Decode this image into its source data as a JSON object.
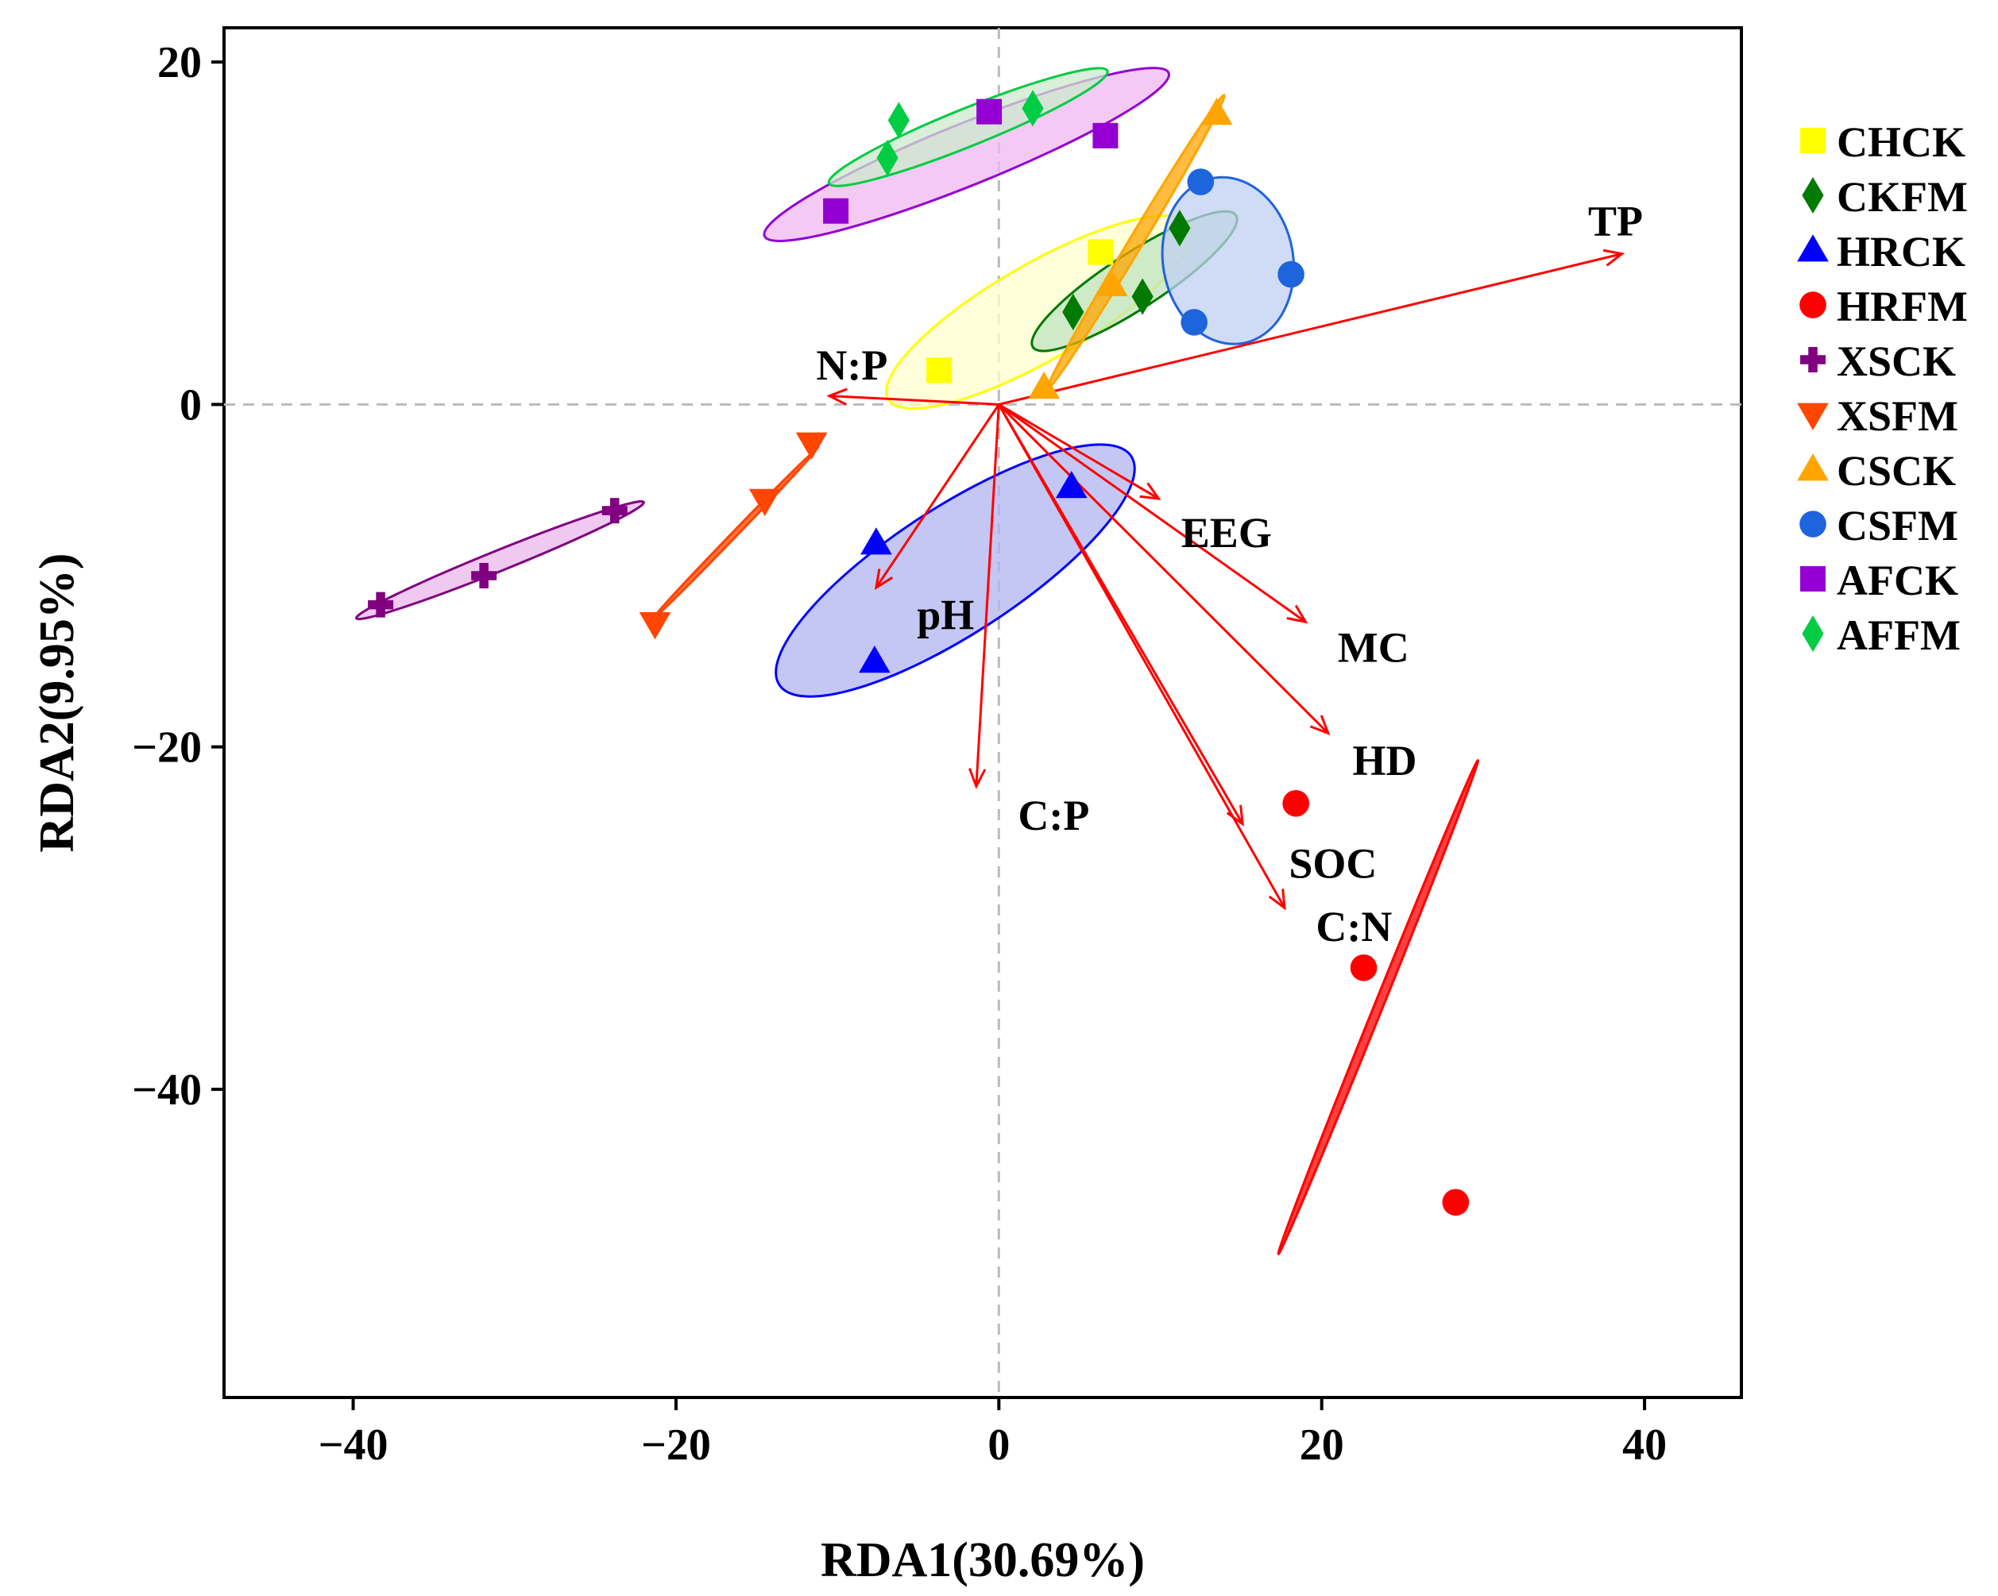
{
  "chart_data": {
    "type": "scatter",
    "subtype": "RDA biplot",
    "xlabel": "RDA1(30.69%)",
    "ylabel": "RDA2(9.95%)",
    "xlim": [
      -48,
      46
    ],
    "ylim": [
      -58,
      22
    ],
    "xticks": [
      -40,
      -20,
      0,
      20,
      40
    ],
    "yticks": [
      20,
      0,
      -20,
      -40
    ],
    "xtick_labels": [
      "−40",
      "−20",
      "0",
      "20",
      "40"
    ],
    "ytick_labels": [
      "20",
      "0",
      "−20",
      "−40"
    ],
    "reference_lines": {
      "x": 0,
      "y": 0,
      "style": "dashed"
    },
    "legend_position": "right",
    "series": [
      {
        "name": "CHCK",
        "marker": "square",
        "color": "#ffff00",
        "points": [
          [
            -3.7,
            2.0
          ],
          [
            6.3,
            8.9
          ]
        ],
        "ellipse": {
          "cx": 2.5,
          "cy": 5.4,
          "rx": 10.8,
          "ry": 2.8,
          "angle": 30
        },
        "ellipse_fill": "#ffffcc",
        "ellipse_stroke": "#ffff00"
      },
      {
        "name": "CKFM",
        "marker": "diamond",
        "color": "#007a00",
        "points": [
          [
            4.6,
            5.4
          ],
          [
            8.9,
            6.3
          ],
          [
            11.2,
            10.3
          ]
        ],
        "ellipse": {
          "cx": 8.4,
          "cy": 7.2,
          "rx": 7.5,
          "ry": 1.6,
          "angle": 33
        },
        "ellipse_fill": "#bfe3bf",
        "ellipse_stroke": "#007a00"
      },
      {
        "name": "HRCK",
        "marker": "triangle-up",
        "color": "#0000ff",
        "points": [
          [
            -7.6,
            -8.1
          ],
          [
            -7.7,
            -15.0
          ],
          [
            4.5,
            -4.8
          ]
        ],
        "ellipse": {
          "cx": -2.7,
          "cy": -9.7,
          "rx": 13.0,
          "ry": 3.7,
          "angle": 33
        },
        "ellipse_fill": "#b0b4f0",
        "ellipse_stroke": "#0000ff"
      },
      {
        "name": "HRFM",
        "marker": "circle",
        "color": "#ff0000",
        "points": [
          [
            18.4,
            -23.3
          ],
          [
            22.6,
            -32.9
          ],
          [
            28.3,
            -46.6
          ]
        ],
        "ellipse": {
          "cx": 23.5,
          "cy": -35.2,
          "rx": 16.5,
          "ry": 0.25,
          "angle": 68
        },
        "ellipse_fill": "#ff0000",
        "ellipse_stroke": "#ff0000"
      },
      {
        "name": "XSCK",
        "marker": "plus",
        "color": "#800080",
        "points": [
          [
            -38.3,
            -11.7
          ],
          [
            -31.9,
            -10.0
          ],
          [
            -23.8,
            -6.2
          ]
        ],
        "ellipse": {
          "cx": -30.9,
          "cy": -9.1,
          "rx": 9.6,
          "ry": 0.6,
          "angle": 22
        },
        "ellipse_fill": "#e9b7e9",
        "ellipse_stroke": "#800080"
      },
      {
        "name": "XSFM",
        "marker": "triangle-down",
        "color": "#ff4500",
        "points": [
          [
            -21.3,
            -12.8
          ],
          [
            -14.5,
            -5.6
          ],
          [
            -11.6,
            -2.3
          ]
        ],
        "ellipse": {
          "cx": -16.4,
          "cy": -7.6,
          "rx": 7.5,
          "ry": 0.15,
          "angle": 46
        },
        "ellipse_fill": "#ff4500",
        "ellipse_stroke": "#ff4500"
      },
      {
        "name": "CSCK",
        "marker": "triangle-up",
        "color": "#ffa500",
        "points": [
          [
            13.5,
            17.0
          ],
          [
            2.8,
            1.0
          ],
          [
            7.0,
            7.0
          ]
        ],
        "ellipse": {
          "cx": 8.5,
          "cy": 9.5,
          "rx": 10.6,
          "ry": 0.4,
          "angle": 59
        },
        "ellipse_fill": "#ffa500",
        "ellipse_stroke": "#ffa500"
      },
      {
        "name": "CSFM",
        "marker": "circle",
        "color": "#1e64dc",
        "points": [
          [
            12.5,
            13.0
          ],
          [
            18.1,
            7.6
          ],
          [
            12.1,
            4.8
          ]
        ],
        "ellipse": {
          "cx": 14.2,
          "cy": 8.4,
          "rx": 5.2,
          "ry": 3.8,
          "angle": 100
        },
        "ellipse_fill": "#c0cff2",
        "ellipse_stroke": "#1e64dc"
      },
      {
        "name": "AFCK",
        "marker": "square",
        "color": "#9400d3",
        "points": [
          [
            -10.1,
            11.3
          ],
          [
            -0.6,
            17.1
          ],
          [
            6.6,
            15.7
          ]
        ],
        "ellipse": {
          "cx": -2.0,
          "cy": 14.6,
          "rx": 13.5,
          "ry": 1.8,
          "angle": 22
        },
        "ellipse_fill": "#f0b8f0",
        "ellipse_stroke": "#9400d3"
      },
      {
        "name": "AFFM",
        "marker": "diamond",
        "color": "#00cc44",
        "points": [
          [
            -6.2,
            16.6
          ],
          [
            -6.9,
            14.4
          ],
          [
            2.1,
            17.3
          ]
        ],
        "ellipse": {
          "cx": -1.9,
          "cy": 16.2,
          "rx": 9.3,
          "ry": 1.1,
          "angle": 22
        },
        "ellipse_fill": "#cdeacd",
        "ellipse_stroke": "#00cc44"
      }
    ],
    "vectors": [
      {
        "name": "TP",
        "x": 38.6,
        "y": 8.8,
        "label_at": [
          38.2,
          10.7
        ]
      },
      {
        "name": "N:P",
        "x": -10.5,
        "y": 0.5,
        "label_at": [
          -9.1,
          2.3
        ]
      },
      {
        "name": "EEG",
        "x": 9.9,
        "y": -5.5,
        "label_at": [
          14.1,
          -7.5
        ]
      },
      {
        "name": "pH",
        "x": -7.6,
        "y": -10.7,
        "label_at": [
          -3.3,
          -12.3
        ]
      },
      {
        "name": "MC",
        "x": 19.0,
        "y": -12.7,
        "label_at": [
          23.2,
          -14.2
        ]
      },
      {
        "name": "HD",
        "x": 20.4,
        "y": -19.2,
        "label_at": [
          23.9,
          -20.8
        ]
      },
      {
        "name": "C:P",
        "x": -1.4,
        "y": -22.3,
        "label_at": [
          3.4,
          -24.0
        ]
      },
      {
        "name": "SOC",
        "x": 15.1,
        "y": -24.5,
        "label_at": [
          20.7,
          -26.8
        ]
      },
      {
        "name": "C:N",
        "x": 17.7,
        "y": -29.4,
        "label_at": [
          22.0,
          -30.5
        ]
      }
    ],
    "vector_color": "#ff0000"
  }
}
